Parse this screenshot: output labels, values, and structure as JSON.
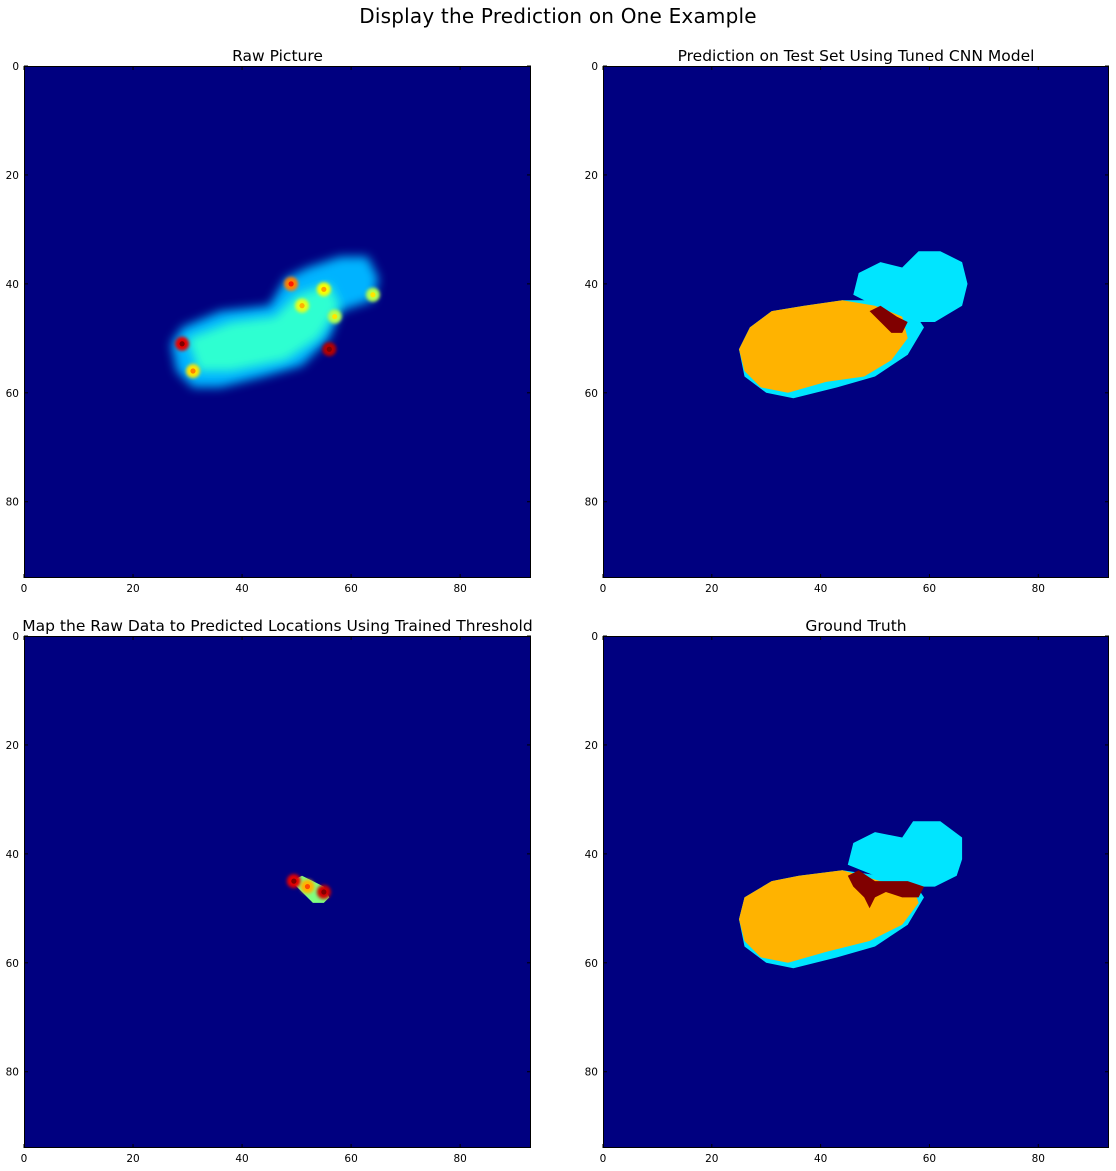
{
  "figure": {
    "suptitle": "Display the Prediction on One Example"
  },
  "colors": {
    "background": "#000080",
    "blue": "#0a10ff",
    "cyan": "#00d4ff",
    "green": "#7dff7a",
    "yellow": "#ffe000",
    "orange": "#ff8c00",
    "red": "#e60000",
    "darkred": "#800000"
  },
  "chart_data": [
    {
      "type": "heatmap",
      "title": "Raw Picture",
      "colormap": "jet",
      "xlim": [
        0,
        93
      ],
      "ylim": [
        94,
        0
      ],
      "xticks": [
        0,
        20,
        40,
        60,
        80
      ],
      "yticks": [
        0,
        20,
        40,
        60,
        80
      ],
      "grid": false,
      "regions": [
        {
          "kind": "blob",
          "level": 0.3,
          "points": [
            [
              29,
              48
            ],
            [
              36,
              45
            ],
            [
              45,
              44
            ],
            [
              48,
              39
            ],
            [
              52,
              37
            ],
            [
              58,
              35
            ],
            [
              63,
              35
            ],
            [
              65,
              39
            ],
            [
              64,
              43
            ],
            [
              58,
              45
            ],
            [
              56,
              50
            ],
            [
              51,
              55
            ],
            [
              44,
              57
            ],
            [
              36,
              59
            ],
            [
              31,
              59
            ],
            [
              28,
              56
            ],
            [
              27,
              51
            ]
          ]
        },
        {
          "kind": "blob",
          "level": 0.42,
          "points": [
            [
              30,
              50
            ],
            [
              38,
              47
            ],
            [
              46,
              46
            ],
            [
              50,
              42
            ],
            [
              56,
              40
            ],
            [
              58,
              44
            ],
            [
              54,
              50
            ],
            [
              48,
              54
            ],
            [
              38,
              56
            ],
            [
              32,
              56
            ]
          ]
        },
        {
          "kind": "hotspot",
          "x": 29,
          "y": 51,
          "level": 0.9
        },
        {
          "kind": "hotspot",
          "x": 31,
          "y": 56,
          "level": 0.65
        },
        {
          "kind": "hotspot",
          "x": 49,
          "y": 40,
          "level": 0.75
        },
        {
          "kind": "hotspot",
          "x": 51,
          "y": 44,
          "level": 0.6
        },
        {
          "kind": "hotspot",
          "x": 55,
          "y": 41,
          "level": 0.62
        },
        {
          "kind": "hotspot",
          "x": 56,
          "y": 52,
          "level": 0.95
        },
        {
          "kind": "hotspot",
          "x": 64,
          "y": 42,
          "level": 0.55
        },
        {
          "kind": "hotspot",
          "x": 57,
          "y": 46,
          "level": 0.55
        }
      ]
    },
    {
      "type": "heatmap",
      "title": "Prediction on Test Set Using Tuned CNN Model",
      "colormap": "jet",
      "xlim": [
        0,
        93
      ],
      "ylim": [
        94,
        0
      ],
      "xticks": [
        0,
        20,
        40,
        60,
        80
      ],
      "yticks": [
        0,
        20,
        40,
        60,
        80
      ],
      "grid": false,
      "regions": [
        {
          "kind": "region",
          "level": 0.35,
          "points": [
            [
              46,
              42
            ],
            [
              47,
              38
            ],
            [
              51,
              36
            ],
            [
              55,
              37
            ],
            [
              58,
              34
            ],
            [
              62,
              34
            ],
            [
              66,
              36
            ],
            [
              67,
              40
            ],
            [
              66,
              44
            ],
            [
              61,
              47
            ],
            [
              56,
              47
            ],
            [
              52,
              45
            ],
            [
              48,
              43
            ]
          ]
        },
        {
          "kind": "region",
          "level": 0.35,
          "points": [
            [
              27,
              48
            ],
            [
              31,
              45
            ],
            [
              37,
              44
            ],
            [
              44,
              43
            ],
            [
              50,
              43
            ],
            [
              57,
              45
            ],
            [
              59,
              48
            ],
            [
              56,
              53
            ],
            [
              50,
              57
            ],
            [
              43,
              59
            ],
            [
              35,
              61
            ],
            [
              30,
              60
            ],
            [
              26,
              57
            ],
            [
              25,
              52
            ]
          ]
        },
        {
          "kind": "region",
          "level": 0.7,
          "points": [
            [
              27,
              48
            ],
            [
              31,
              45
            ],
            [
              37,
              44
            ],
            [
              44,
              43
            ],
            [
              50,
              44
            ],
            [
              55,
              46
            ],
            [
              56,
              50
            ],
            [
              53,
              54
            ],
            [
              48,
              57
            ],
            [
              41,
              58
            ],
            [
              34,
              60
            ],
            [
              29,
              59
            ],
            [
              26,
              56
            ],
            [
              25,
              52
            ]
          ]
        },
        {
          "kind": "region",
          "level": 1.0,
          "points": [
            [
              49,
              45
            ],
            [
              51,
              44
            ],
            [
              54,
              46
            ],
            [
              56,
              47
            ],
            [
              55,
              49
            ],
            [
              53,
              49
            ],
            [
              51,
              47
            ]
          ]
        }
      ]
    },
    {
      "type": "heatmap",
      "title": "Map the Raw Data to Predicted Locations Using Trained Threshold",
      "colormap": "jet",
      "xlim": [
        0,
        93
      ],
      "ylim": [
        94,
        0
      ],
      "xticks": [
        0,
        20,
        40,
        60,
        80
      ],
      "yticks": [
        0,
        20,
        40,
        60,
        80
      ],
      "grid": false,
      "regions": [
        {
          "kind": "region",
          "level": 0.5,
          "points": [
            [
              49,
              45
            ],
            [
              51,
              44
            ],
            [
              53,
              45
            ],
            [
              55,
              46
            ],
            [
              56,
              48
            ],
            [
              55,
              49
            ],
            [
              53,
              49
            ],
            [
              51,
              47
            ]
          ]
        },
        {
          "kind": "hotspot",
          "x": 49.5,
          "y": 45,
          "level": 0.9
        },
        {
          "kind": "hotspot",
          "x": 55,
          "y": 47,
          "level": 0.92
        },
        {
          "kind": "hotspot",
          "x": 52,
          "y": 46,
          "level": 0.7
        }
      ]
    },
    {
      "type": "heatmap",
      "title": "Ground Truth",
      "colormap": "jet",
      "xlim": [
        0,
        93
      ],
      "ylim": [
        94,
        0
      ],
      "xticks": [
        0,
        20,
        40,
        60,
        80
      ],
      "yticks": [
        0,
        20,
        40,
        60,
        80
      ],
      "grid": false,
      "regions": [
        {
          "kind": "region",
          "level": 0.35,
          "points": [
            [
              45,
              42
            ],
            [
              46,
              38
            ],
            [
              50,
              36
            ],
            [
              55,
              37
            ],
            [
              57,
              34
            ],
            [
              62,
              34
            ],
            [
              66,
              37
            ],
            [
              66,
              41
            ],
            [
              65,
              44
            ],
            [
              61,
              46
            ],
            [
              56,
              46
            ],
            [
              50,
              44
            ]
          ]
        },
        {
          "kind": "region",
          "level": 0.35,
          "points": [
            [
              26,
              48
            ],
            [
              31,
              45
            ],
            [
              36,
              44
            ],
            [
              44,
              43
            ],
            [
              51,
              44
            ],
            [
              57,
              45
            ],
            [
              59,
              48
            ],
            [
              56,
              53
            ],
            [
              50,
              57
            ],
            [
              43,
              59
            ],
            [
              35,
              61
            ],
            [
              30,
              60
            ],
            [
              26,
              57
            ],
            [
              25,
              52
            ]
          ]
        },
        {
          "kind": "region",
          "level": 0.7,
          "points": [
            [
              26,
              48
            ],
            [
              31,
              45
            ],
            [
              36,
              44
            ],
            [
              44,
              43
            ],
            [
              51,
              45
            ],
            [
              57,
              46
            ],
            [
              58,
              49
            ],
            [
              55,
              53
            ],
            [
              49,
              56
            ],
            [
              41,
              58
            ],
            [
              34,
              60
            ],
            [
              29,
              59
            ],
            [
              26,
              56
            ],
            [
              25,
              52
            ]
          ]
        },
        {
          "kind": "region",
          "level": 1.0,
          "points": [
            [
              45,
              44
            ],
            [
              47,
              43
            ],
            [
              50,
              45
            ],
            [
              56,
              45
            ],
            [
              59,
              46
            ],
            [
              58,
              48
            ],
            [
              55,
              48
            ],
            [
              52,
              47
            ],
            [
              50,
              48
            ],
            [
              49,
              50
            ],
            [
              48,
              48
            ],
            [
              46,
              46
            ]
          ]
        }
      ]
    }
  ]
}
